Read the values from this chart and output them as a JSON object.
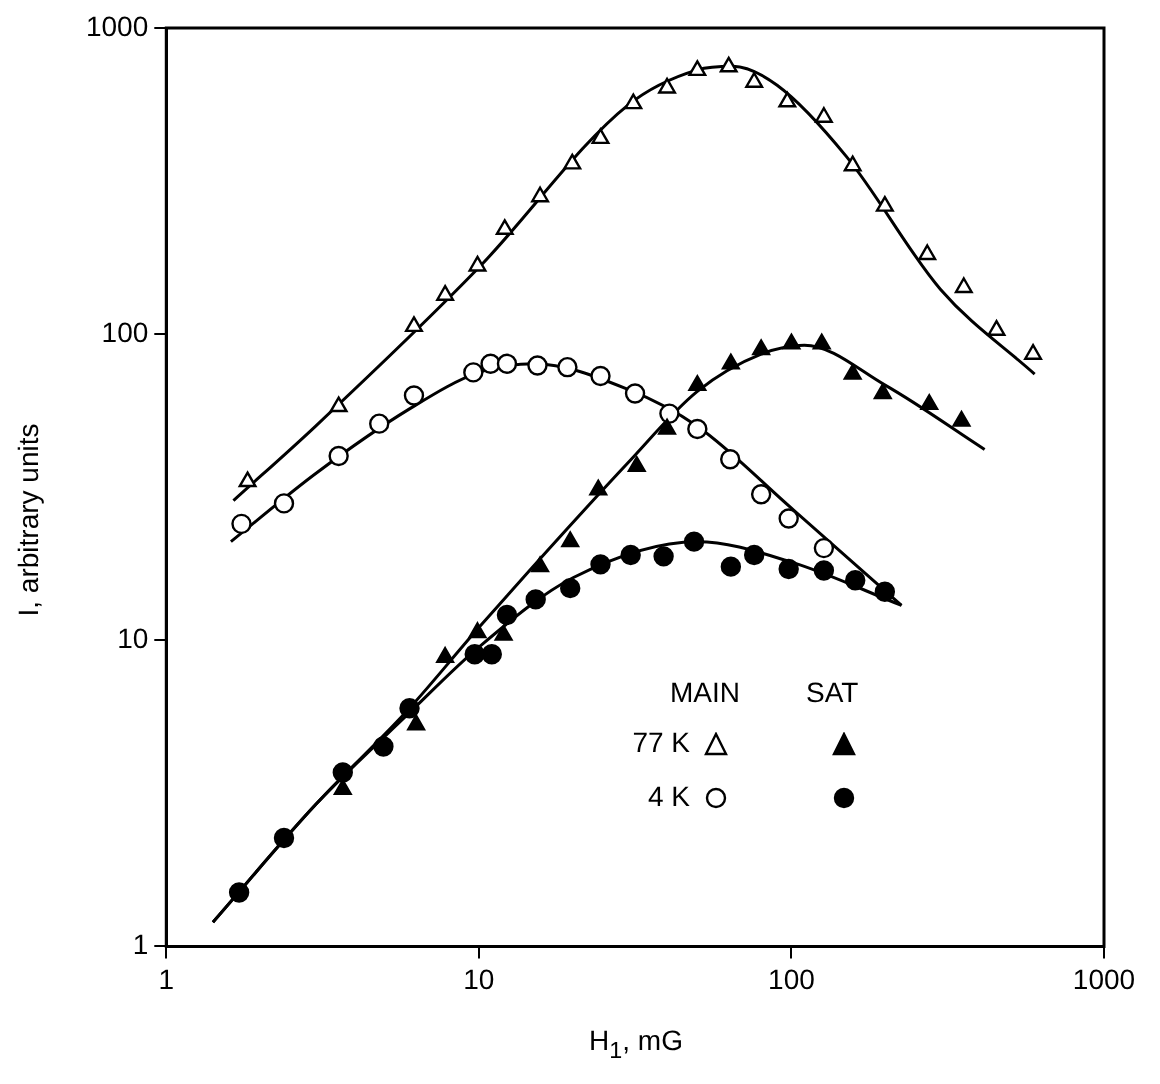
{
  "chart_data": {
    "type": "scatter",
    "xlabel": "H$_{1}$, mG",
    "ylabel": "I, arbitrary units",
    "log": "xy",
    "xlim": [
      1,
      1000
    ],
    "ylim": [
      1,
      1000
    ],
    "xticks": [
      1,
      10,
      100,
      1000
    ],
    "yticks": [
      1,
      10,
      100,
      1000
    ],
    "grid": false,
    "annotations": [
      "MAIN",
      "SAT"
    ],
    "legend": "bottom right",
    "series": [
      {
        "type": "scatter",
        "name": "77 K",
        "marker": "triangle",
        "color": "#000000",
        "x": [
          1.82,
          3.56,
          6.2,
          7.8,
          9.9,
          12.1,
          15.7,
          19.9,
          24.5,
          31.2,
          40,
          50,
          63,
          76,
          97,
          127,
          157,
          199,
          272,
          356,
          453,
          593
        ],
        "values": [
          33,
          58,
          106,
          134,
          167,
          220,
          281,
          360,
          436,
          566,
          637,
          727,
          747,
          665,
          574,
          511,
          355,
          262,
          182,
          142,
          103,
          86
        ]
      },
      {
        "type": "scatter",
        "marker": "triangle",
        "color": "#000000",
        "x": [
          3.67,
          6.3,
          7.8,
          9.9,
          12,
          15.7,
          19.6,
          24.1,
          32,
          40,
          50,
          64,
          80,
          100,
          125,
          157,
          196,
          276,
          350
        ],
        "values": [
          3.26,
          5.3,
          8.8,
          10.6,
          10.4,
          17.4,
          21,
          31,
          37,
          49,
          68,
          80,
          89,
          93,
          93,
          74,
          64,
          59,
          52
        ]
      },
      {
        "type": "scatter",
        "name": "4 K",
        "marker": "circle",
        "color": "#000000",
        "x": [
          1.74,
          2.38,
          3.56,
          4.8,
          6.2,
          9.6,
          10.9,
          12.3,
          15.4,
          19.2,
          24.5,
          31.6,
          40.7,
          50,
          63.7,
          80,
          98,
          127
        ],
        "values": [
          24,
          28,
          40,
          51,
          63,
          75,
          80,
          80,
          79,
          78,
          73,
          64,
          55,
          49,
          39,
          30,
          25,
          20
        ]
      },
      {
        "type": "scatter",
        "marker": "circle",
        "color": "#000000",
        "x": [
          1.71,
          2.38,
          3.67,
          4.95,
          6,
          9.7,
          11,
          12.3,
          15.2,
          19.6,
          24.5,
          30.6,
          39,
          48.8,
          64,
          76,
          98,
          127,
          160,
          199
        ],
        "values": [
          1.5,
          2.26,
          3.7,
          4.5,
          6,
          9,
          9,
          12.1,
          13.6,
          14.8,
          17.7,
          19,
          18.8,
          21,
          17.4,
          19,
          17.1,
          16.9,
          15.7,
          14.4
        ]
      },
      {
        "type": "line",
        "marker": "none",
        "color": "#000000",
        "x": [
          1.64,
          3,
          10,
          30,
          50,
          65,
          90,
          150,
          300,
          600
        ],
        "values": [
          28.6,
          50,
          165,
          560,
          730,
          750,
          650,
          380,
          140,
          74
        ]
      },
      {
        "type": "line",
        "marker": "none",
        "color": "#000000",
        "x": [
          1.41,
          3,
          6,
          10,
          30,
          50,
          80,
          110,
          200,
          415
        ],
        "values": [
          1.2,
          2.9,
          6,
          11,
          38,
          65,
          86,
          92,
          68,
          42
        ]
      },
      {
        "type": "line",
        "marker": "none",
        "color": "#000000",
        "x": [
          1.61,
          3,
          6,
          10,
          15,
          30,
          50,
          100,
          225
        ],
        "values": [
          21,
          35,
          57,
          75,
          80,
          66,
          50,
          27,
          13
        ]
      },
      {
        "type": "line",
        "marker": "none",
        "color": "#000000",
        "x": [
          1.41,
          3,
          6,
          10,
          20,
          50,
          100,
          225
        ],
        "values": [
          1.2,
          2.9,
          5.8,
          9.5,
          16,
          21,
          18,
          13
        ]
      }
    ]
  }
}
